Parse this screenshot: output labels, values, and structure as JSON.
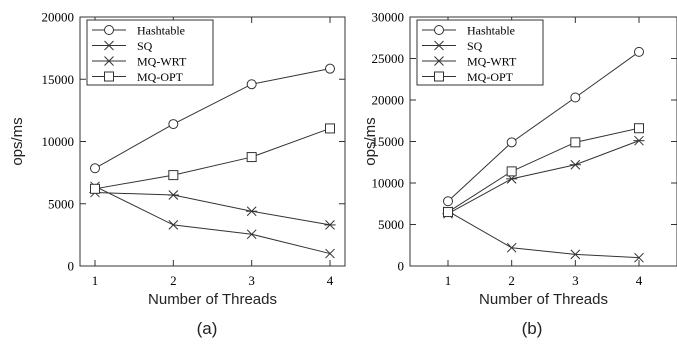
{
  "chart_data": [
    {
      "type": "line",
      "caption": "(a)",
      "xlabel": "Number of Threads",
      "ylabel": "ops/ms",
      "x": [
        1,
        2,
        3,
        4
      ],
      "xticks": [
        "1",
        "2",
        "3",
        "4"
      ],
      "ylim": [
        0,
        20000
      ],
      "yticks": [
        "0",
        "5000",
        "10000",
        "15000",
        "20000"
      ],
      "legend_position": "top-left",
      "grid": false,
      "series": [
        {
          "name": "Hashtable",
          "marker": "circle",
          "values": [
            7850,
            11400,
            14600,
            15850
          ]
        },
        {
          "name": "SQ",
          "marker": "x",
          "values": [
            6400,
            3300,
            2550,
            1000
          ]
        },
        {
          "name": "MQ-WRT",
          "marker": "asterisk",
          "values": [
            5900,
            5700,
            4400,
            3300
          ]
        },
        {
          "name": "MQ-OPT",
          "marker": "square",
          "values": [
            6200,
            7300,
            8750,
            11050
          ]
        }
      ]
    },
    {
      "type": "line",
      "caption": "(b)",
      "xlabel": "Number of Threads",
      "ylabel": "ops/ms",
      "x": [
        1,
        2,
        3,
        4
      ],
      "xticks": [
        "1",
        "2",
        "3",
        "4"
      ],
      "ylim": [
        0,
        30000
      ],
      "yticks": [
        "0",
        "5000",
        "10000",
        "15000",
        "20000",
        "25000",
        "30000"
      ],
      "legend_position": "top-left",
      "grid": false,
      "series": [
        {
          "name": "Hashtable",
          "marker": "circle",
          "values": [
            7800,
            14900,
            20300,
            25800
          ]
        },
        {
          "name": "SQ",
          "marker": "x",
          "values": [
            6600,
            2200,
            1400,
            1000
          ]
        },
        {
          "name": "MQ-WRT",
          "marker": "asterisk",
          "values": [
            6300,
            10500,
            12200,
            15100
          ]
        },
        {
          "name": "MQ-OPT",
          "marker": "square",
          "values": [
            6500,
            11400,
            14900,
            16600
          ]
        }
      ]
    }
  ]
}
